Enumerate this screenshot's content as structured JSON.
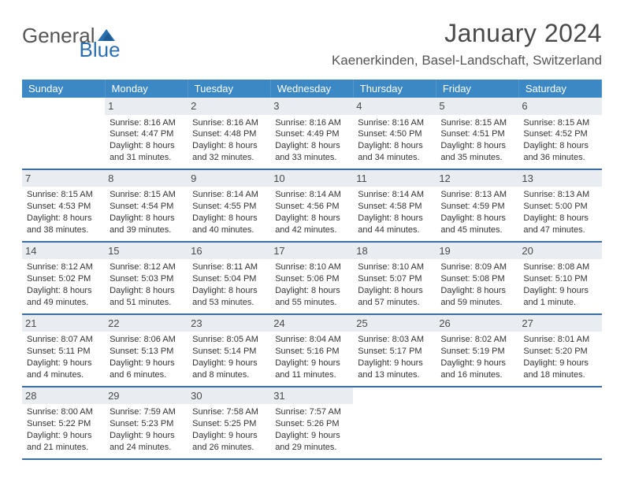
{
  "logo": {
    "text1": "General",
    "text2": "Blue"
  },
  "title": "January 2024",
  "location": "Kaenerkinden, Basel-Landschaft, Switzerland",
  "colors": {
    "header_bg": "#3b88c4",
    "header_text": "#ffffff",
    "row_border": "#3b6fa3",
    "daynum_bg": "#e9edf1",
    "body_text": "#333333",
    "logo_gray": "#555555",
    "logo_blue": "#2b6fb0",
    "page_bg": "#ffffff"
  },
  "typography": {
    "title_fontsize": 32,
    "location_fontsize": 17,
    "header_fontsize": 13,
    "cell_fontsize": 11,
    "daynum_fontsize": 13
  },
  "days_of_week": [
    "Sunday",
    "Monday",
    "Tuesday",
    "Wednesday",
    "Thursday",
    "Friday",
    "Saturday"
  ],
  "weeks": [
    [
      {
        "num": "",
        "sunrise": "",
        "sunset": "",
        "dl1": "",
        "dl2": ""
      },
      {
        "num": "1",
        "sunrise": "Sunrise: 8:16 AM",
        "sunset": "Sunset: 4:47 PM",
        "dl1": "Daylight: 8 hours",
        "dl2": "and 31 minutes."
      },
      {
        "num": "2",
        "sunrise": "Sunrise: 8:16 AM",
        "sunset": "Sunset: 4:48 PM",
        "dl1": "Daylight: 8 hours",
        "dl2": "and 32 minutes."
      },
      {
        "num": "3",
        "sunrise": "Sunrise: 8:16 AM",
        "sunset": "Sunset: 4:49 PM",
        "dl1": "Daylight: 8 hours",
        "dl2": "and 33 minutes."
      },
      {
        "num": "4",
        "sunrise": "Sunrise: 8:16 AM",
        "sunset": "Sunset: 4:50 PM",
        "dl1": "Daylight: 8 hours",
        "dl2": "and 34 minutes."
      },
      {
        "num": "5",
        "sunrise": "Sunrise: 8:15 AM",
        "sunset": "Sunset: 4:51 PM",
        "dl1": "Daylight: 8 hours",
        "dl2": "and 35 minutes."
      },
      {
        "num": "6",
        "sunrise": "Sunrise: 8:15 AM",
        "sunset": "Sunset: 4:52 PM",
        "dl1": "Daylight: 8 hours",
        "dl2": "and 36 minutes."
      }
    ],
    [
      {
        "num": "7",
        "sunrise": "Sunrise: 8:15 AM",
        "sunset": "Sunset: 4:53 PM",
        "dl1": "Daylight: 8 hours",
        "dl2": "and 38 minutes."
      },
      {
        "num": "8",
        "sunrise": "Sunrise: 8:15 AM",
        "sunset": "Sunset: 4:54 PM",
        "dl1": "Daylight: 8 hours",
        "dl2": "and 39 minutes."
      },
      {
        "num": "9",
        "sunrise": "Sunrise: 8:14 AM",
        "sunset": "Sunset: 4:55 PM",
        "dl1": "Daylight: 8 hours",
        "dl2": "and 40 minutes."
      },
      {
        "num": "10",
        "sunrise": "Sunrise: 8:14 AM",
        "sunset": "Sunset: 4:56 PM",
        "dl1": "Daylight: 8 hours",
        "dl2": "and 42 minutes."
      },
      {
        "num": "11",
        "sunrise": "Sunrise: 8:14 AM",
        "sunset": "Sunset: 4:58 PM",
        "dl1": "Daylight: 8 hours",
        "dl2": "and 44 minutes."
      },
      {
        "num": "12",
        "sunrise": "Sunrise: 8:13 AM",
        "sunset": "Sunset: 4:59 PM",
        "dl1": "Daylight: 8 hours",
        "dl2": "and 45 minutes."
      },
      {
        "num": "13",
        "sunrise": "Sunrise: 8:13 AM",
        "sunset": "Sunset: 5:00 PM",
        "dl1": "Daylight: 8 hours",
        "dl2": "and 47 minutes."
      }
    ],
    [
      {
        "num": "14",
        "sunrise": "Sunrise: 8:12 AM",
        "sunset": "Sunset: 5:02 PM",
        "dl1": "Daylight: 8 hours",
        "dl2": "and 49 minutes."
      },
      {
        "num": "15",
        "sunrise": "Sunrise: 8:12 AM",
        "sunset": "Sunset: 5:03 PM",
        "dl1": "Daylight: 8 hours",
        "dl2": "and 51 minutes."
      },
      {
        "num": "16",
        "sunrise": "Sunrise: 8:11 AM",
        "sunset": "Sunset: 5:04 PM",
        "dl1": "Daylight: 8 hours",
        "dl2": "and 53 minutes."
      },
      {
        "num": "17",
        "sunrise": "Sunrise: 8:10 AM",
        "sunset": "Sunset: 5:06 PM",
        "dl1": "Daylight: 8 hours",
        "dl2": "and 55 minutes."
      },
      {
        "num": "18",
        "sunrise": "Sunrise: 8:10 AM",
        "sunset": "Sunset: 5:07 PM",
        "dl1": "Daylight: 8 hours",
        "dl2": "and 57 minutes."
      },
      {
        "num": "19",
        "sunrise": "Sunrise: 8:09 AM",
        "sunset": "Sunset: 5:08 PM",
        "dl1": "Daylight: 8 hours",
        "dl2": "and 59 minutes."
      },
      {
        "num": "20",
        "sunrise": "Sunrise: 8:08 AM",
        "sunset": "Sunset: 5:10 PM",
        "dl1": "Daylight: 9 hours",
        "dl2": "and 1 minute."
      }
    ],
    [
      {
        "num": "21",
        "sunrise": "Sunrise: 8:07 AM",
        "sunset": "Sunset: 5:11 PM",
        "dl1": "Daylight: 9 hours",
        "dl2": "and 4 minutes."
      },
      {
        "num": "22",
        "sunrise": "Sunrise: 8:06 AM",
        "sunset": "Sunset: 5:13 PM",
        "dl1": "Daylight: 9 hours",
        "dl2": "and 6 minutes."
      },
      {
        "num": "23",
        "sunrise": "Sunrise: 8:05 AM",
        "sunset": "Sunset: 5:14 PM",
        "dl1": "Daylight: 9 hours",
        "dl2": "and 8 minutes."
      },
      {
        "num": "24",
        "sunrise": "Sunrise: 8:04 AM",
        "sunset": "Sunset: 5:16 PM",
        "dl1": "Daylight: 9 hours",
        "dl2": "and 11 minutes."
      },
      {
        "num": "25",
        "sunrise": "Sunrise: 8:03 AM",
        "sunset": "Sunset: 5:17 PM",
        "dl1": "Daylight: 9 hours",
        "dl2": "and 13 minutes."
      },
      {
        "num": "26",
        "sunrise": "Sunrise: 8:02 AM",
        "sunset": "Sunset: 5:19 PM",
        "dl1": "Daylight: 9 hours",
        "dl2": "and 16 minutes."
      },
      {
        "num": "27",
        "sunrise": "Sunrise: 8:01 AM",
        "sunset": "Sunset: 5:20 PM",
        "dl1": "Daylight: 9 hours",
        "dl2": "and 18 minutes."
      }
    ],
    [
      {
        "num": "28",
        "sunrise": "Sunrise: 8:00 AM",
        "sunset": "Sunset: 5:22 PM",
        "dl1": "Daylight: 9 hours",
        "dl2": "and 21 minutes."
      },
      {
        "num": "29",
        "sunrise": "Sunrise: 7:59 AM",
        "sunset": "Sunset: 5:23 PM",
        "dl1": "Daylight: 9 hours",
        "dl2": "and 24 minutes."
      },
      {
        "num": "30",
        "sunrise": "Sunrise: 7:58 AM",
        "sunset": "Sunset: 5:25 PM",
        "dl1": "Daylight: 9 hours",
        "dl2": "and 26 minutes."
      },
      {
        "num": "31",
        "sunrise": "Sunrise: 7:57 AM",
        "sunset": "Sunset: 5:26 PM",
        "dl1": "Daylight: 9 hours",
        "dl2": "and 29 minutes."
      },
      {
        "num": "",
        "sunrise": "",
        "sunset": "",
        "dl1": "",
        "dl2": ""
      },
      {
        "num": "",
        "sunrise": "",
        "sunset": "",
        "dl1": "",
        "dl2": ""
      },
      {
        "num": "",
        "sunrise": "",
        "sunset": "",
        "dl1": "",
        "dl2": ""
      }
    ]
  ]
}
